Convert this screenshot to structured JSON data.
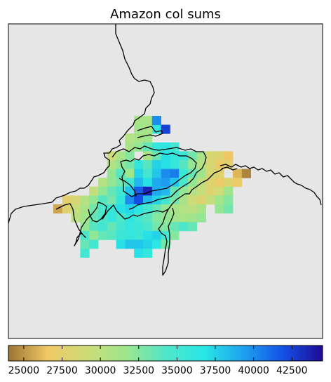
{
  "chart_data": {
    "type": "heatmap",
    "title": "Amazon col sums",
    "colorbar": {
      "orientation": "horizontal",
      "placement": "bottom",
      "min": 24000,
      "max": 44500,
      "ticks": [
        25000,
        27500,
        30000,
        32500,
        35000,
        37500,
        40000,
        42500
      ],
      "tick_labels": [
        "25000",
        "27500",
        "30000",
        "32500",
        "35000",
        "37500",
        "40000",
        "42500"
      ],
      "colormap": [
        "#9b7434",
        "#f0c864",
        "#cddc78",
        "#9ce68c",
        "#50e6c8",
        "#28e6e6",
        "#1ea0f0",
        "#1450e6",
        "#1e0a96"
      ]
    },
    "background_color": "#e6e6e6",
    "grid": false,
    "note_cells": "cells are [column, row, value] on the map's lon/lat grid",
    "cells": [
      [
        14,
        5,
        31000
      ],
      [
        15,
        5,
        31200
      ],
      [
        16,
        6,
        36500
      ],
      [
        17,
        6,
        42500
      ],
      [
        14,
        6,
        31500
      ],
      [
        15,
        6,
        31000
      ],
      [
        16,
        5,
        40000
      ],
      [
        15,
        7,
        31500
      ],
      [
        13,
        7,
        30500
      ],
      [
        14,
        7,
        31000
      ],
      [
        13,
        8,
        31000
      ],
      [
        14,
        8,
        32000
      ],
      [
        15,
        8,
        33500
      ],
      [
        16,
        8,
        36000
      ],
      [
        17,
        8,
        36500
      ],
      [
        18,
        8,
        35000
      ],
      [
        11,
        9,
        29000
      ],
      [
        12,
        9,
        31000
      ],
      [
        13,
        9,
        32500
      ],
      [
        15,
        9,
        31000
      ],
      [
        16,
        9,
        33500
      ],
      [
        17,
        9,
        37000
      ],
      [
        18,
        9,
        36000
      ],
      [
        19,
        9,
        35500
      ],
      [
        20,
        9,
        33000
      ],
      [
        21,
        9,
        31000
      ],
      [
        22,
        9,
        28500
      ],
      [
        23,
        9,
        28000
      ],
      [
        24,
        9,
        26500
      ],
      [
        11,
        10,
        30500
      ],
      [
        12,
        10,
        32000
      ],
      [
        13,
        10,
        33000
      ],
      [
        14,
        10,
        36000
      ],
      [
        15,
        10,
        34000
      ],
      [
        16,
        10,
        37500
      ],
      [
        17,
        10,
        37000
      ],
      [
        18,
        10,
        36000
      ],
      [
        19,
        10,
        34000
      ],
      [
        20,
        10,
        32000
      ],
      [
        21,
        10,
        30500
      ],
      [
        22,
        10,
        28500
      ],
      [
        23,
        10,
        27000
      ],
      [
        24,
        10,
        27500
      ],
      [
        11,
        11,
        32000
      ],
      [
        12,
        11,
        34000
      ],
      [
        13,
        11,
        31500
      ],
      [
        14,
        11,
        37500
      ],
      [
        15,
        11,
        35000
      ],
      [
        16,
        11,
        38000
      ],
      [
        17,
        11,
        40000
      ],
      [
        18,
        11,
        40500
      ],
      [
        19,
        11,
        35500
      ],
      [
        20,
        11,
        33500
      ],
      [
        21,
        11,
        31500
      ],
      [
        22,
        11,
        28500
      ],
      [
        23,
        11,
        28000
      ],
      [
        25,
        11,
        26000
      ],
      [
        26,
        11,
        24500
      ],
      [
        10,
        12,
        30500
      ],
      [
        11,
        12,
        32000
      ],
      [
        12,
        12,
        33000
      ],
      [
        13,
        12,
        35000
      ],
      [
        14,
        12,
        38500
      ],
      [
        15,
        12,
        37000
      ],
      [
        16,
        12,
        39000
      ],
      [
        17,
        12,
        39500
      ],
      [
        18,
        12,
        38000
      ],
      [
        19,
        12,
        34500
      ],
      [
        20,
        12,
        32000
      ],
      [
        21,
        12,
        30000
      ],
      [
        22,
        12,
        28000
      ],
      [
        23,
        12,
        27000
      ],
      [
        24,
        12,
        28000
      ],
      [
        25,
        12,
        27000
      ],
      [
        9,
        13,
        29500
      ],
      [
        10,
        13,
        32000
      ],
      [
        11,
        13,
        33500
      ],
      [
        12,
        13,
        35000
      ],
      [
        13,
        13,
        38000
      ],
      [
        14,
        13,
        41500
      ],
      [
        15,
        13,
        43500
      ],
      [
        16,
        13,
        39000
      ],
      [
        17,
        13,
        38500
      ],
      [
        18,
        13,
        33500
      ],
      [
        19,
        13,
        32000
      ],
      [
        20,
        13,
        30500
      ],
      [
        21,
        13,
        29500
      ],
      [
        22,
        13,
        28000
      ],
      [
        23,
        13,
        29000
      ],
      [
        24,
        13,
        31500
      ],
      [
        6,
        14,
        27500
      ],
      [
        7,
        14,
        28500
      ],
      [
        8,
        14,
        30500
      ],
      [
        9,
        14,
        32000
      ],
      [
        10,
        14,
        34000
      ],
      [
        11,
        14,
        33000
      ],
      [
        12,
        14,
        36000
      ],
      [
        13,
        14,
        40000
      ],
      [
        14,
        14,
        42000
      ],
      [
        15,
        14,
        38500
      ],
      [
        16,
        14,
        37500
      ],
      [
        17,
        14,
        35000
      ],
      [
        18,
        14,
        33000
      ],
      [
        19,
        14,
        31000
      ],
      [
        20,
        14,
        29000
      ],
      [
        21,
        14,
        28000
      ],
      [
        22,
        14,
        29500
      ],
      [
        23,
        14,
        31500
      ],
      [
        24,
        14,
        32500
      ],
      [
        5,
        15,
        25500
      ],
      [
        6,
        15,
        28000
      ],
      [
        7,
        15,
        29500
      ],
      [
        8,
        15,
        31000
      ],
      [
        9,
        15,
        33000
      ],
      [
        10,
        15,
        34500
      ],
      [
        11,
        15,
        35500
      ],
      [
        12,
        15,
        37000
      ],
      [
        13,
        15,
        37500
      ],
      [
        14,
        15,
        36500
      ],
      [
        15,
        15,
        35000
      ],
      [
        16,
        15,
        33500
      ],
      [
        17,
        15,
        32000
      ],
      [
        18,
        15,
        31000
      ],
      [
        19,
        15,
        30500
      ],
      [
        20,
        15,
        30000
      ],
      [
        21,
        15,
        31000
      ],
      [
        23,
        15,
        32000
      ],
      [
        24,
        15,
        33000
      ],
      [
        7,
        16,
        30000
      ],
      [
        8,
        16,
        31500
      ],
      [
        9,
        16,
        33500
      ],
      [
        10,
        16,
        34500
      ],
      [
        11,
        16,
        36000
      ],
      [
        12,
        16,
        34500
      ],
      [
        13,
        16,
        36500
      ],
      [
        14,
        16,
        35000
      ],
      [
        15,
        16,
        34000
      ],
      [
        16,
        16,
        32500
      ],
      [
        17,
        16,
        32000
      ],
      [
        18,
        16,
        31500
      ],
      [
        19,
        16,
        31000
      ],
      [
        20,
        16,
        31500
      ],
      [
        21,
        16,
        32000
      ],
      [
        8,
        17,
        32000
      ],
      [
        9,
        17,
        34000
      ],
      [
        10,
        17,
        35000
      ],
      [
        11,
        17,
        33500
      ],
      [
        12,
        17,
        35000
      ],
      [
        13,
        17,
        36000
      ],
      [
        14,
        17,
        35500
      ],
      [
        15,
        17,
        34500
      ],
      [
        16,
        17,
        33000
      ],
      [
        17,
        17,
        32500
      ],
      [
        18,
        17,
        33500
      ],
      [
        19,
        17,
        34500
      ],
      [
        20,
        17,
        33500
      ],
      [
        8,
        18,
        34500
      ],
      [
        9,
        18,
        32000
      ],
      [
        10,
        18,
        33500
      ],
      [
        11,
        18,
        34000
      ],
      [
        12,
        18,
        35500
      ],
      [
        13,
        18,
        36000
      ],
      [
        14,
        18,
        35500
      ],
      [
        15,
        18,
        37000
      ],
      [
        16,
        18,
        37500
      ],
      [
        17,
        18,
        35000
      ],
      [
        18,
        18,
        32500
      ],
      [
        8,
        19,
        33500
      ],
      [
        9,
        19,
        35000
      ],
      [
        12,
        19,
        37000
      ],
      [
        13,
        19,
        38000
      ],
      [
        14,
        19,
        38000
      ],
      [
        15,
        19,
        37500
      ],
      [
        16,
        19,
        36500
      ],
      [
        17,
        19,
        33000
      ],
      [
        8,
        20,
        35000
      ],
      [
        14,
        20,
        37000
      ],
      [
        15,
        20,
        36000
      ]
    ]
  }
}
